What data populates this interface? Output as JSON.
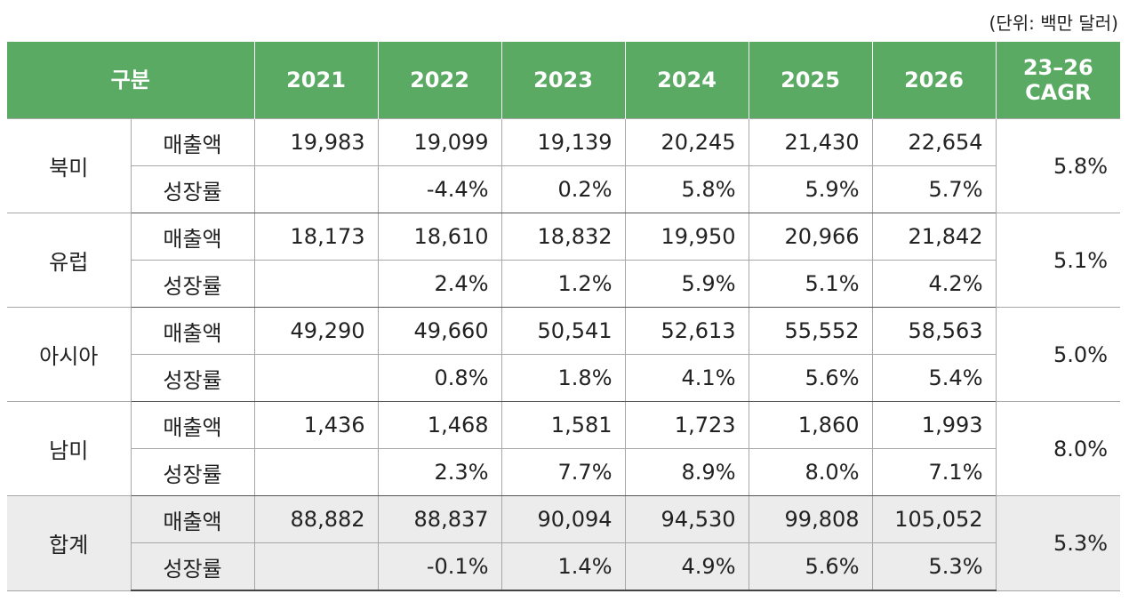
{
  "unit_note": "(단위: 백만 달러)",
  "header": {
    "category": "구분",
    "years": [
      "2021",
      "2022",
      "2023",
      "2024",
      "2025",
      "2026"
    ],
    "cagr_line1": "23–26",
    "cagr_line2": "CAGR"
  },
  "regions": [
    {
      "name": "북미",
      "sales_label": "매출액",
      "growth_label": "성장률",
      "sales": [
        "19,983",
        "19,099",
        "19,139",
        "20,245",
        "21,430",
        "22,654"
      ],
      "growth": [
        "",
        "-4.4%",
        "0.2%",
        "5.8%",
        "5.9%",
        "5.7%"
      ],
      "cagr": "5.8%"
    },
    {
      "name": "유럽",
      "sales_label": "매출액",
      "growth_label": "성장률",
      "sales": [
        "18,173",
        "18,610",
        "18,832",
        "19,950",
        "20,966",
        "21,842"
      ],
      "growth": [
        "",
        "2.4%",
        "1.2%",
        "5.9%",
        "5.1%",
        "4.2%"
      ],
      "cagr": "5.1%"
    },
    {
      "name": "아시아",
      "sales_label": "매출액",
      "growth_label": "성장률",
      "sales": [
        "49,290",
        "49,660",
        "50,541",
        "52,613",
        "55,552",
        "58,563"
      ],
      "growth": [
        "",
        "0.8%",
        "1.8%",
        "4.1%",
        "5.6%",
        "5.4%"
      ],
      "cagr": "5.0%"
    },
    {
      "name": "남미",
      "sales_label": "매출액",
      "growth_label": "성장률",
      "sales": [
        "1,436",
        "1,468",
        "1,581",
        "1,723",
        "1,860",
        "1,993"
      ],
      "growth": [
        "",
        "2.3%",
        "7.7%",
        "8.9%",
        "8.0%",
        "7.1%"
      ],
      "cagr": "8.0%"
    },
    {
      "name": "합계",
      "sales_label": "매출액",
      "growth_label": "성장률",
      "sales": [
        "88,882",
        "88,837",
        "90,094",
        "94,530",
        "99,808",
        "105,052"
      ],
      "growth": [
        "",
        "-0.1%",
        "1.4%",
        "4.9%",
        "5.6%",
        "5.3%"
      ],
      "cagr": "5.3%"
    }
  ]
}
